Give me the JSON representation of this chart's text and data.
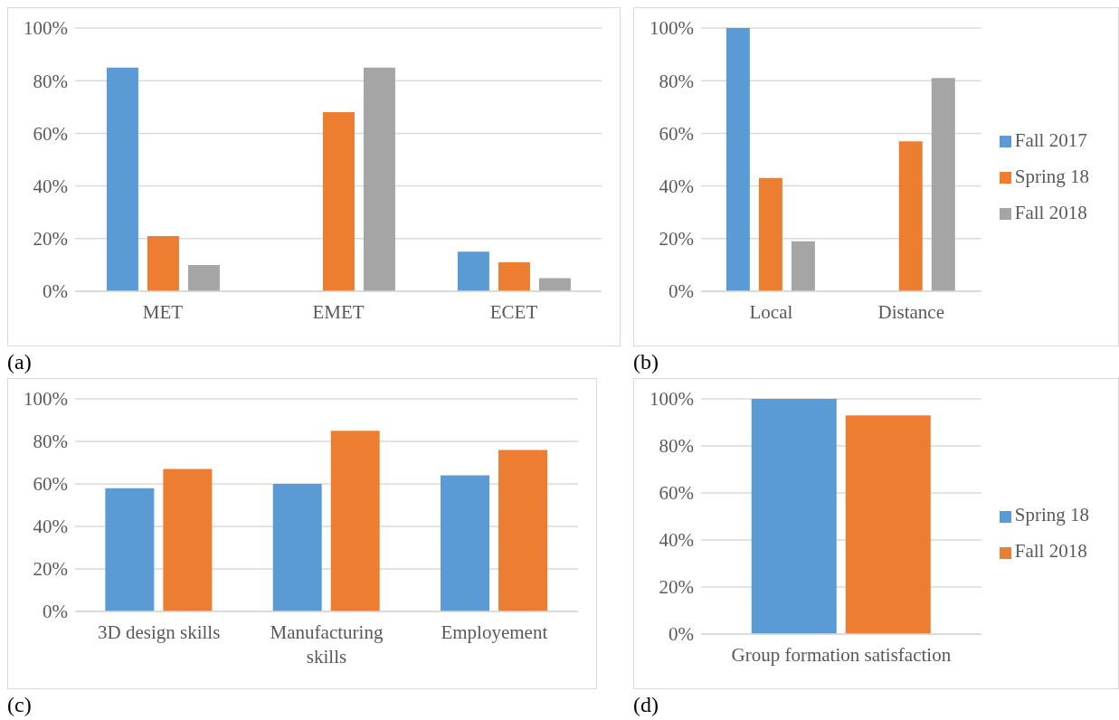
{
  "chart_data": [
    {
      "type": "bar",
      "categories": [
        "MET",
        "EMET",
        "ECET"
      ],
      "series": [
        {
          "color": "#5b9bd5",
          "values": [
            85,
            null,
            15
          ]
        },
        {
          "color": "#ed7d31",
          "values": [
            21,
            68,
            11
          ]
        },
        {
          "color": "#a5a5a5",
          "values": [
            10,
            85,
            5
          ]
        }
      ],
      "ylim": [
        0,
        100
      ],
      "yticks": [
        {
          "value": 0,
          "label": "0%"
        },
        {
          "value": 20,
          "label": "20%"
        },
        {
          "value": 40,
          "label": "40%"
        },
        {
          "value": 60,
          "label": "60%"
        },
        {
          "value": 80,
          "label": "80%"
        },
        {
          "value": 100,
          "label": "100%"
        }
      ],
      "grid": "y",
      "legend": false,
      "annotations": [
        "(a)"
      ]
    },
    {
      "type": "bar",
      "categories": [
        "Local",
        "Distance"
      ],
      "series": [
        {
          "name": "Fall 2017",
          "color": "#5b9bd5",
          "values": [
            100,
            null
          ]
        },
        {
          "name": "Spring 18",
          "color": "#ed7d31",
          "values": [
            43,
            57
          ]
        },
        {
          "name": "Fall 2018",
          "color": "#a5a5a5",
          "values": [
            19,
            81
          ]
        }
      ],
      "ylim": [
        0,
        100
      ],
      "yticks": [
        {
          "value": 0,
          "label": "0%"
        },
        {
          "value": 20,
          "label": "20%"
        },
        {
          "value": 40,
          "label": "40%"
        },
        {
          "value": 60,
          "label": "60%"
        },
        {
          "value": 80,
          "label": "80%"
        },
        {
          "value": 100,
          "label": "100%"
        }
      ],
      "grid": "y",
      "legend": "right",
      "annotations": [
        "(b)"
      ]
    },
    {
      "type": "bar",
      "categories": [
        "3D design skills",
        "Manufacturing skills",
        "Employement"
      ],
      "series": [
        {
          "color": "#5b9bd5",
          "values": [
            58,
            60,
            64
          ]
        },
        {
          "color": "#ed7d31",
          "values": [
            67,
            85,
            76
          ]
        }
      ],
      "ylim": [
        0,
        100
      ],
      "yticks": [
        {
          "value": 0,
          "label": "0%"
        },
        {
          "value": 20,
          "label": "20%"
        },
        {
          "value": 40,
          "label": "40%"
        },
        {
          "value": 60,
          "label": "60%"
        },
        {
          "value": 80,
          "label": "80%"
        },
        {
          "value": 100,
          "label": "100%"
        }
      ],
      "grid": "y",
      "legend": false,
      "annotations": [
        "(c)"
      ]
    },
    {
      "type": "bar",
      "categories": [
        "Group formation satisfaction"
      ],
      "series": [
        {
          "name": "Spring 18",
          "color": "#5b9bd5",
          "values": [
            100
          ]
        },
        {
          "name": "Fall 2018",
          "color": "#ed7d31",
          "values": [
            93
          ]
        }
      ],
      "ylim": [
        0,
        100
      ],
      "yticks": [
        {
          "value": 0,
          "label": "0%"
        },
        {
          "value": 20,
          "label": "20%"
        },
        {
          "value": 40,
          "label": "40%"
        },
        {
          "value": 60,
          "label": "60%"
        },
        {
          "value": 80,
          "label": "80%"
        },
        {
          "value": 100,
          "label": "100%"
        }
      ],
      "grid": "y",
      "legend": "right",
      "annotations": [
        "(d)"
      ]
    }
  ]
}
